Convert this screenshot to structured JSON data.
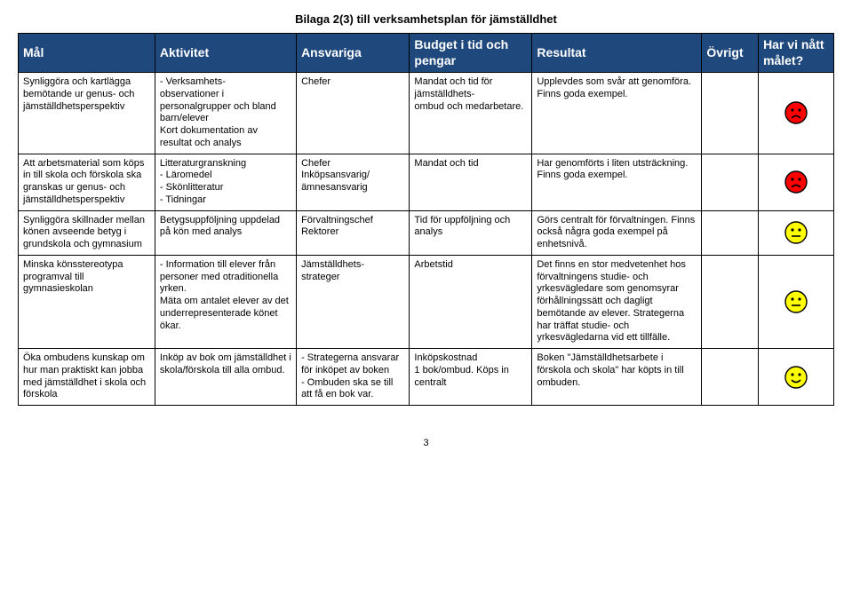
{
  "page_title": "Bilaga 2(3) till verksamhetsplan för jämställdhet",
  "page_number": "3",
  "header": {
    "mal": "Mål",
    "aktivitet": "Aktivitet",
    "ansvariga": "Ansvariga",
    "budget": "Budget i tid och pengar",
    "resultat": "Resultat",
    "ovrigt": "Övrigt",
    "harvi": "Har vi nått målet?",
    "bg_color": "#1f497d",
    "fg_color": "#ffffff"
  },
  "faces": {
    "sad": {
      "fill": "#ff0000",
      "stroke": "#000000",
      "mouth": "sad"
    },
    "neutral": {
      "fill": "#ffff00",
      "stroke": "#000000",
      "mouth": "neutral"
    },
    "happy": {
      "fill": "#ffff00",
      "stroke": "#000000",
      "mouth": "happy"
    }
  },
  "rows": [
    {
      "mal": "Synliggöra och kartlägga bemötande ur genus- och jämställdhetsperspektiv",
      "aktivitet": "- Verksamhets-\nobservationer i personalgrupper och bland barn/elever\nKort dokumentation av resultat och analys",
      "ansvariga": "Chefer",
      "budget": "Mandat och tid för jämställdhets-\nombud och medarbetare.",
      "resultat": "Upplevdes som svår att genomföra.\nFinns goda exempel.",
      "ovrigt": "",
      "face": "sad"
    },
    {
      "mal": "Att arbetsmaterial som köps in till skola och förskola ska granskas ur genus- och jämställdhetsperspektiv",
      "aktivitet": "Litteraturgranskning\n- Läromedel\n- Skönlitteratur\n- Tidningar",
      "ansvariga": "Chefer\nInköpsansvarig/ ämnesansvarig",
      "budget": "Mandat och tid",
      "resultat": "Har genomförts i liten utsträckning.\nFinns goda exempel.",
      "ovrigt": "",
      "face": "sad"
    },
    {
      "mal": "Synliggöra skillnader mellan könen avseende betyg i grundskola och gymnasium",
      "aktivitet": "Betygsuppföljning uppdelad på kön med analys",
      "ansvariga": "Förvaltningschef\nRektorer",
      "budget": "Tid för uppföljning och analys",
      "resultat": "Görs centralt för förvaltningen. Finns också några goda exempel på enhetsnivå.",
      "ovrigt": "",
      "face": "neutral"
    },
    {
      "mal": "Minska könsstereotypa programval till gymnasieskolan",
      "aktivitet": "- Information till elever från personer med otraditionella yrken.\nMäta om antalet elever av det underrepresenterade könet ökar.",
      "ansvariga": "Jämställdhets-\nstrateger",
      "budget": "Arbetstid",
      "resultat": "Det finns en stor medvetenhet hos förvaltningens studie- och yrkesvägledare som genomsyrar förhållningssätt och dagligt bemötande av elever. Strategerna har träffat studie- och yrkesvägledarna vid ett tillfälle.",
      "ovrigt": "",
      "face": "neutral"
    },
    {
      "mal": "Öka ombudens kunskap om hur man praktiskt kan jobba med jämställdhet i skola och förskola",
      "aktivitet": "Inköp av bok om jämställdhet i skola/förskola till alla ombud.",
      "ansvariga": "- Strategerna ansvarar för inköpet av boken\n- Ombuden ska se till att få en bok var.",
      "budget": "Inköpskostnad\n1 bok/ombud. Köps in centralt",
      "resultat": "Boken \"Jämställdhetsarbete i förskola och skola\" har köpts in till ombuden.",
      "ovrigt": "",
      "face": "happy"
    }
  ]
}
